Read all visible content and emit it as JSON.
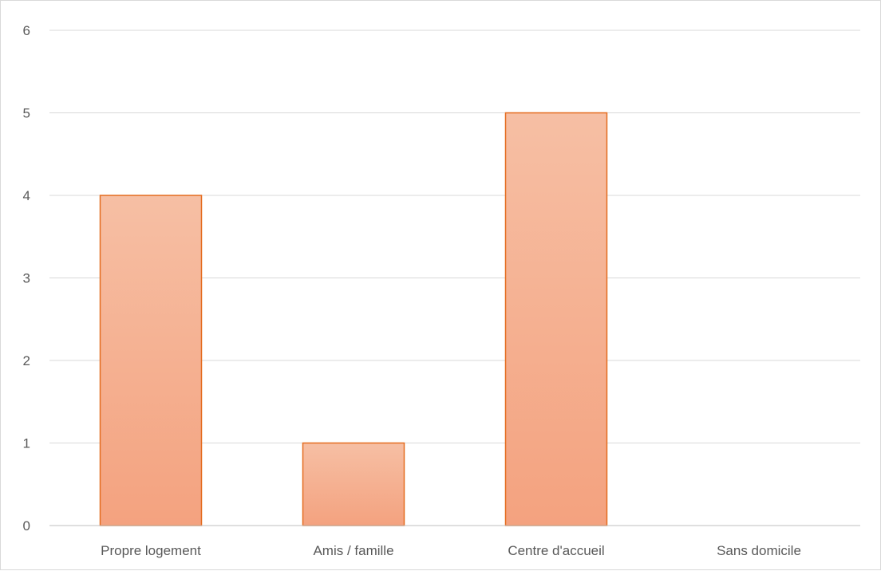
{
  "chart_data": {
    "type": "bar",
    "categories": [
      "Propre logement",
      "Amis / famille",
      "Centre d'accueil",
      "Sans domicile"
    ],
    "values": [
      4,
      1,
      5,
      0
    ],
    "title": "",
    "xlabel": "",
    "ylabel": "",
    "ylim": [
      0,
      6
    ],
    "yticks": [
      0,
      1,
      2,
      3,
      4,
      5,
      6
    ],
    "grid": true,
    "legend": "none",
    "colors": {
      "bar_fill_top": "#f6bfa4",
      "bar_fill_bottom": "#f4a27f",
      "bar_stroke": "#e46c1f",
      "gridline": "#d9d9d9",
      "axis": "#bfbfbf",
      "text": "#595959"
    }
  }
}
